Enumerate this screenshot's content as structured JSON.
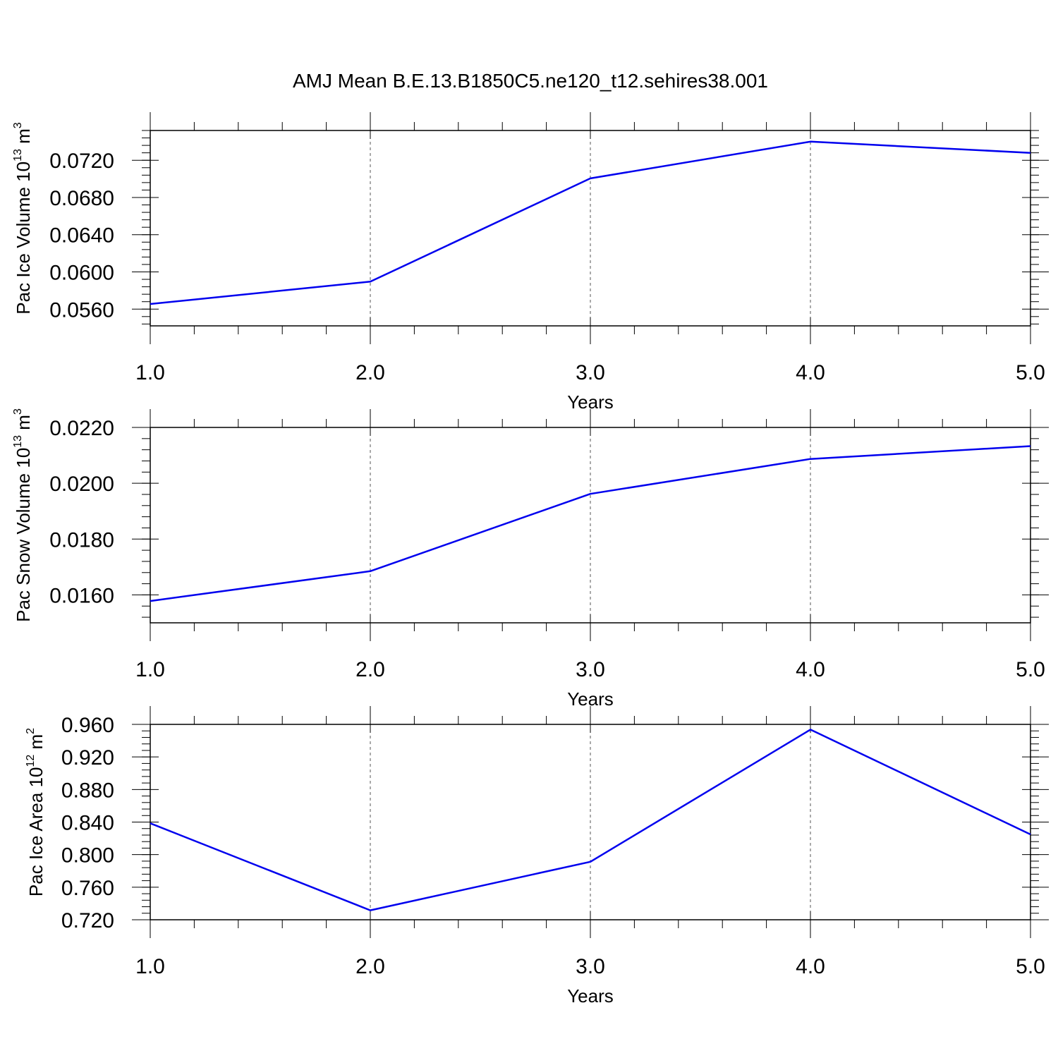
{
  "figure_title": "AMJ Mean B.E.13.B1850C5.ne120_t12.sehires38.001",
  "colors": {
    "series": "#0000ee",
    "axes": "#000000",
    "grid": "#555555"
  },
  "chart_data": [
    {
      "type": "line",
      "x": [
        1,
        2,
        3,
        4,
        5
      ],
      "series": [
        {
          "values": [
            0.05655,
            0.05895,
            0.07005,
            0.074,
            0.0728
          ]
        }
      ],
      "xlabel": "Years",
      "ylabel": {
        "prefix": "Pac Ice Volume 10",
        "exponent": "13",
        "unit": " m",
        "unit_exponent": "3"
      },
      "xlim": [
        1,
        5
      ],
      "ylim": [
        0.0542,
        0.0752
      ],
      "xticks": [
        1,
        2,
        3,
        4,
        5
      ],
      "xtick_labels": [
        "1.0",
        "2.0",
        "3.0",
        "4.0",
        "5.0"
      ],
      "yticks": [
        0.056,
        0.06,
        0.064,
        0.068,
        0.072
      ],
      "ytick_labels": [
        "0.0560",
        "0.0600",
        "0.0640",
        "0.0680",
        "0.0720"
      ],
      "yminor_step": 0.0008,
      "grid": "vertical dashed at major x ticks"
    },
    {
      "type": "line",
      "x": [
        1,
        2,
        3,
        4,
        5
      ],
      "series": [
        {
          "values": [
            0.01578,
            0.01685,
            0.01962,
            0.02087,
            0.02133
          ]
        }
      ],
      "xlabel": "Years",
      "ylabel": {
        "prefix": "Pac Snow Volume 10",
        "exponent": "13",
        "unit": " m",
        "unit_exponent": "3"
      },
      "xlim": [
        1,
        5
      ],
      "ylim": [
        0.015,
        0.022
      ],
      "xticks": [
        1,
        2,
        3,
        4,
        5
      ],
      "xtick_labels": [
        "1.0",
        "2.0",
        "3.0",
        "4.0",
        "5.0"
      ],
      "yticks": [
        0.016,
        0.018,
        0.02,
        0.022
      ],
      "ytick_labels": [
        "0.0160",
        "0.0180",
        "0.0200",
        "0.0220"
      ],
      "yminor_step": 0.0004,
      "grid": "vertical dashed at major x ticks"
    },
    {
      "type": "line",
      "x": [
        1,
        2,
        3,
        4,
        5
      ],
      "series": [
        {
          "values": [
            0.8385,
            0.7316,
            0.7912,
            0.9536,
            0.8248
          ]
        }
      ],
      "xlabel": "Years",
      "ylabel": {
        "prefix": "Pac Ice Area 10",
        "exponent": "12",
        "unit": " m",
        "unit_exponent": "2"
      },
      "xlim": [
        1,
        5
      ],
      "ylim": [
        0.72,
        0.96
      ],
      "xticks": [
        1,
        2,
        3,
        4,
        5
      ],
      "xtick_labels": [
        "1.0",
        "2.0",
        "3.0",
        "4.0",
        "5.0"
      ],
      "yticks": [
        0.72,
        0.76,
        0.8,
        0.84,
        0.88,
        0.92,
        0.96
      ],
      "ytick_labels": [
        "0.720",
        "0.760",
        "0.800",
        "0.840",
        "0.880",
        "0.920",
        "0.960"
      ],
      "yminor_step": 0.008,
      "grid": "vertical dashed at major x ticks"
    }
  ]
}
